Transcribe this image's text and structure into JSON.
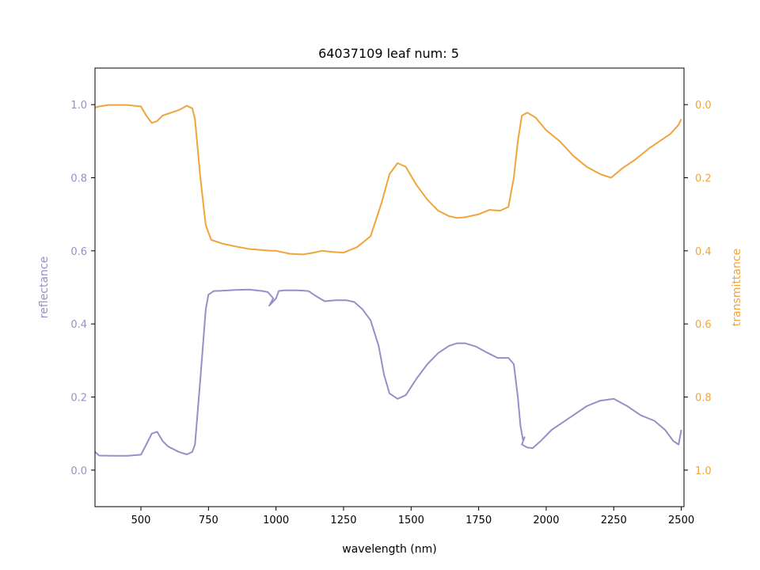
{
  "chart_data": {
    "type": "line",
    "title": "64037109 leaf num: 5",
    "xlabel": "wavelength (nm)",
    "ylabel_left": "reflectance",
    "ylabel_right": "transmittance",
    "xlim": [
      330,
      2510
    ],
    "ylim_left": [
      -0.1,
      1.1
    ],
    "ylim_right_inverted": [
      1.1,
      -0.1
    ],
    "x_ticks": [
      500,
      750,
      1000,
      1250,
      1500,
      1750,
      2000,
      2250,
      2500
    ],
    "y_ticks_left": [
      0.0,
      0.2,
      0.4,
      0.6,
      0.8,
      1.0
    ],
    "y_ticks_right": [
      0.0,
      0.2,
      0.4,
      0.6,
      0.8,
      1.0
    ],
    "grid": false,
    "colors": {
      "reflectance": "#9690c8",
      "transmittance": "#f0a43c",
      "axis": "#000000"
    },
    "series": [
      {
        "name": "reflectance",
        "axis": "left",
        "points": [
          [
            330,
            0.05
          ],
          [
            345,
            0.04
          ],
          [
            400,
            0.039
          ],
          [
            450,
            0.039
          ],
          [
            500,
            0.042
          ],
          [
            520,
            0.07
          ],
          [
            540,
            0.1
          ],
          [
            560,
            0.105
          ],
          [
            580,
            0.08
          ],
          [
            600,
            0.065
          ],
          [
            640,
            0.05
          ],
          [
            670,
            0.043
          ],
          [
            690,
            0.05
          ],
          [
            700,
            0.07
          ],
          [
            720,
            0.25
          ],
          [
            740,
            0.44
          ],
          [
            750,
            0.48
          ],
          [
            770,
            0.49
          ],
          [
            800,
            0.491
          ],
          [
            850,
            0.493
          ],
          [
            900,
            0.494
          ],
          [
            950,
            0.49
          ],
          [
            970,
            0.487
          ],
          [
            990,
            0.47
          ],
          [
            975,
            0.45
          ],
          [
            1000,
            0.47
          ],
          [
            1010,
            0.49
          ],
          [
            1030,
            0.492
          ],
          [
            1080,
            0.492
          ],
          [
            1120,
            0.49
          ],
          [
            1150,
            0.475
          ],
          [
            1180,
            0.462
          ],
          [
            1220,
            0.465
          ],
          [
            1260,
            0.465
          ],
          [
            1290,
            0.46
          ],
          [
            1320,
            0.44
          ],
          [
            1350,
            0.41
          ],
          [
            1380,
            0.34
          ],
          [
            1400,
            0.26
          ],
          [
            1420,
            0.21
          ],
          [
            1450,
            0.195
          ],
          [
            1480,
            0.205
          ],
          [
            1520,
            0.25
          ],
          [
            1560,
            0.29
          ],
          [
            1600,
            0.32
          ],
          [
            1640,
            0.34
          ],
          [
            1670,
            0.347
          ],
          [
            1700,
            0.347
          ],
          [
            1740,
            0.338
          ],
          [
            1780,
            0.322
          ],
          [
            1820,
            0.307
          ],
          [
            1860,
            0.307
          ],
          [
            1880,
            0.29
          ],
          [
            1895,
            0.2
          ],
          [
            1905,
            0.12
          ],
          [
            1915,
            0.08
          ],
          [
            1920,
            0.09
          ],
          [
            1910,
            0.07
          ],
          [
            1930,
            0.062
          ],
          [
            1950,
            0.06
          ],
          [
            1980,
            0.08
          ],
          [
            2020,
            0.11
          ],
          [
            2060,
            0.13
          ],
          [
            2100,
            0.15
          ],
          [
            2150,
            0.175
          ],
          [
            2200,
            0.19
          ],
          [
            2250,
            0.195
          ],
          [
            2300,
            0.175
          ],
          [
            2350,
            0.15
          ],
          [
            2400,
            0.135
          ],
          [
            2440,
            0.11
          ],
          [
            2470,
            0.08
          ],
          [
            2490,
            0.07
          ],
          [
            2500,
            0.11
          ]
        ]
      },
      {
        "name": "transmittance",
        "axis": "right",
        "points": [
          [
            330,
            0.008
          ],
          [
            345,
            0.005
          ],
          [
            380,
            0.001
          ],
          [
            450,
            0.001
          ],
          [
            500,
            0.005
          ],
          [
            520,
            0.03
          ],
          [
            540,
            0.05
          ],
          [
            560,
            0.045
          ],
          [
            580,
            0.03
          ],
          [
            600,
            0.025
          ],
          [
            640,
            0.015
          ],
          [
            670,
            0.003
          ],
          [
            690,
            0.01
          ],
          [
            700,
            0.04
          ],
          [
            720,
            0.2
          ],
          [
            740,
            0.33
          ],
          [
            760,
            0.37
          ],
          [
            800,
            0.38
          ],
          [
            850,
            0.388
          ],
          [
            900,
            0.395
          ],
          [
            950,
            0.398
          ],
          [
            980,
            0.4
          ],
          [
            1000,
            0.4
          ],
          [
            1050,
            0.408
          ],
          [
            1100,
            0.41
          ],
          [
            1140,
            0.405
          ],
          [
            1170,
            0.4
          ],
          [
            1210,
            0.403
          ],
          [
            1250,
            0.405
          ],
          [
            1300,
            0.39
          ],
          [
            1350,
            0.36
          ],
          [
            1390,
            0.27
          ],
          [
            1420,
            0.19
          ],
          [
            1450,
            0.16
          ],
          [
            1480,
            0.17
          ],
          [
            1520,
            0.22
          ],
          [
            1560,
            0.26
          ],
          [
            1600,
            0.29
          ],
          [
            1640,
            0.305
          ],
          [
            1670,
            0.31
          ],
          [
            1700,
            0.308
          ],
          [
            1750,
            0.3
          ],
          [
            1790,
            0.288
          ],
          [
            1830,
            0.29
          ],
          [
            1860,
            0.28
          ],
          [
            1880,
            0.2
          ],
          [
            1895,
            0.1
          ],
          [
            1910,
            0.03
          ],
          [
            1930,
            0.022
          ],
          [
            1960,
            0.035
          ],
          [
            2000,
            0.07
          ],
          [
            2050,
            0.1
          ],
          [
            2100,
            0.14
          ],
          [
            2150,
            0.17
          ],
          [
            2200,
            0.19
          ],
          [
            2240,
            0.2
          ],
          [
            2280,
            0.175
          ],
          [
            2330,
            0.15
          ],
          [
            2380,
            0.12
          ],
          [
            2420,
            0.1
          ],
          [
            2460,
            0.08
          ],
          [
            2490,
            0.055
          ],
          [
            2500,
            0.04
          ]
        ]
      }
    ]
  }
}
